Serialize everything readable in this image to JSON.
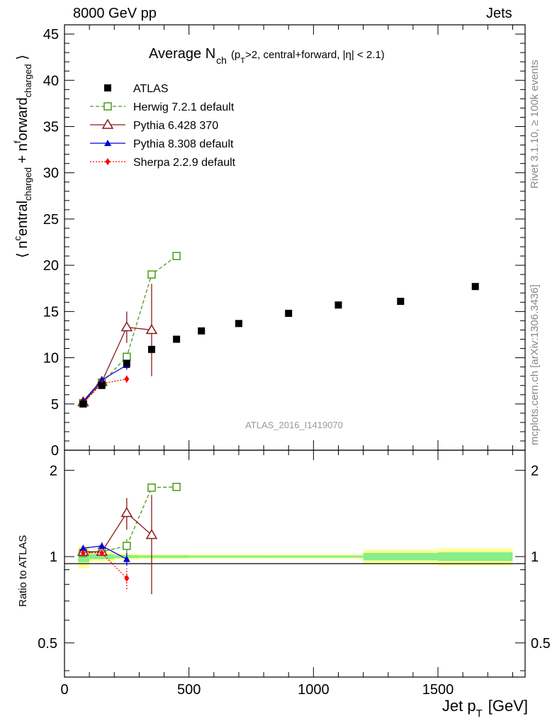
{
  "header": {
    "left": "8000 GeV pp",
    "right": "Jets"
  },
  "side_labels": {
    "rivet": "Rivet 3.1.10, ≥ 100k events",
    "mcplots": "mcplots.cern.ch [arXiv:1306.3436]"
  },
  "chart_data": [
    {
      "type": "scatter",
      "title": "Average N_ch (p_T>2, central+forward, |η| < 2.1)",
      "title_main": "Average N",
      "title_sub": "ch",
      "title_rest": "(p",
      "title_rest_sub": "T",
      "title_tail": ">2, central+forward, |η| < 2.1)",
      "ylabel": "⟨ n^central_charged + n^forward_charged ⟩",
      "watermark": "ATLAS_2016_I1419070",
      "xlim": [
        0,
        1850
      ],
      "ylim": [
        0,
        46
      ],
      "y_ticks": [
        0,
        5,
        10,
        15,
        20,
        25,
        30,
        35,
        40,
        45
      ],
      "legend_position": "top-left",
      "series": [
        {
          "name": "ATLAS",
          "color": "#000000",
          "marker": "square-filled",
          "x": [
            75,
            150,
            250,
            350,
            450,
            550,
            700,
            900,
            1100,
            1350,
            1650
          ],
          "y": [
            5.0,
            7.0,
            9.4,
            10.9,
            12.0,
            12.9,
            13.7,
            14.8,
            15.7,
            16.1,
            17.7
          ]
        },
        {
          "name": "Herwig 7.2.1 default",
          "color": "#4a9a1a",
          "marker": "square-open",
          "dash": "dashed",
          "x": [
            75,
            150,
            250,
            350,
            450
          ],
          "y": [
            5.1,
            7.3,
            10.1,
            19.0,
            21.0
          ],
          "yerr": [
            0.2,
            0.2,
            0.6,
            0,
            0
          ]
        },
        {
          "name": "Pythia 6.428 370",
          "color": "#8b1a1a",
          "marker": "triangle-open",
          "dash": "solid",
          "x": [
            75,
            150,
            250,
            350
          ],
          "y": [
            5.2,
            7.4,
            13.3,
            13.0
          ],
          "yerr": [
            0.2,
            0.3,
            1.7,
            5.0
          ]
        },
        {
          "name": "Pythia 8.308 default",
          "color": "#0000dd",
          "marker": "triangle-filled",
          "dash": "solid",
          "x": [
            75,
            150,
            250
          ],
          "y": [
            5.3,
            7.6,
            9.2
          ],
          "yerr": [
            0.1,
            0.2,
            0.5
          ]
        },
        {
          "name": "Sherpa 2.2.9 default",
          "color": "#ff0000",
          "marker": "diamond-filled",
          "dash": "dotted",
          "x": [
            75,
            150,
            250
          ],
          "y": [
            5.1,
            7.2,
            7.7
          ],
          "yerr": [
            0.1,
            0.2,
            0.4
          ]
        }
      ]
    },
    {
      "type": "scatter",
      "ylabel": "Ratio to ATLAS",
      "xlabel": "Jet p_T [GeV]",
      "xlabel_main": "Jet p",
      "xlabel_sub": "T",
      "xlabel_tail": "[GeV]",
      "xlim": [
        0,
        1850
      ],
      "ylim": [
        0.38,
        2.35
      ],
      "y_scale": "log",
      "y_ticks": [
        0.5,
        1,
        2
      ],
      "x_ticks": [
        0,
        500,
        1000,
        1500
      ],
      "bands": [
        {
          "x0": 55,
          "x1": 100,
          "inner": 0.045,
          "outer": 0.09
        },
        {
          "x0": 100,
          "x1": 200,
          "inner": 0.02,
          "outer": 0.04
        },
        {
          "x0": 200,
          "x1": 300,
          "inner": 0.012,
          "outer": 0.025
        },
        {
          "x0": 300,
          "x1": 400,
          "inner": 0.01,
          "outer": 0.02
        },
        {
          "x0": 400,
          "x1": 500,
          "inner": 0.01,
          "outer": 0.02
        },
        {
          "x0": 500,
          "x1": 600,
          "inner": 0.008,
          "outer": 0.018
        },
        {
          "x0": 600,
          "x1": 800,
          "inner": 0.008,
          "outer": 0.018
        },
        {
          "x0": 800,
          "x1": 1000,
          "inner": 0.008,
          "outer": 0.018
        },
        {
          "x0": 1000,
          "x1": 1200,
          "inner": 0.008,
          "outer": 0.018
        },
        {
          "x0": 1200,
          "x1": 1500,
          "inner": 0.03,
          "outer": 0.06
        },
        {
          "x0": 1500,
          "x1": 1800,
          "inner": 0.035,
          "outer": 0.07
        }
      ],
      "series": [
        {
          "name": "Herwig 7.2.1 default",
          "color": "#4a9a1a",
          "marker": "square-open",
          "dash": "dashed",
          "x": [
            75,
            150,
            250,
            350,
            450
          ],
          "y": [
            1.03,
            1.04,
            1.09,
            1.74,
            1.75
          ],
          "yerr": [
            0.03,
            0.03,
            0.06,
            0,
            0
          ]
        },
        {
          "name": "Pythia 6.428 370",
          "color": "#8b1a1a",
          "marker": "triangle-open",
          "dash": "solid",
          "x": [
            75,
            150,
            250,
            350
          ],
          "y": [
            1.04,
            1.04,
            1.42,
            1.19
          ],
          "yerr": [
            0.03,
            0.03,
            0.18,
            0.45
          ]
        },
        {
          "name": "Pythia 8.308 default",
          "color": "#0000dd",
          "marker": "triangle-filled",
          "dash": "solid",
          "x": [
            75,
            150,
            250
          ],
          "y": [
            1.07,
            1.09,
            0.98
          ],
          "yerr": [
            0.02,
            0.03,
            0.05
          ]
        },
        {
          "name": "Sherpa 2.2.9 default",
          "color": "#ff0000",
          "marker": "diamond-filled",
          "dash": "dotted",
          "x": [
            75,
            150,
            250
          ],
          "y": [
            1.03,
            1.03,
            0.84
          ],
          "yerr": [
            0.02,
            0.02,
            0.07
          ]
        }
      ]
    }
  ]
}
